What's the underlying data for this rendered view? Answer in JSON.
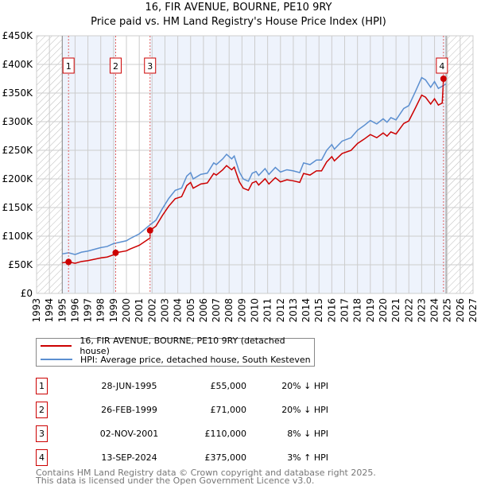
{
  "chart_data": {
    "type": "line",
    "title": "16, FIR AVENUE, BOURNE, PE10 9RY",
    "subtitle": "Price paid vs. HM Land Registry's House Price Index (HPI)",
    "xlim": [
      1993,
      2027
    ],
    "ylim": [
      0,
      450000
    ],
    "x_ticks": [
      "1993",
      "1994",
      "1995",
      "1996",
      "1997",
      "1998",
      "1999",
      "2000",
      "2001",
      "2002",
      "2003",
      "2004",
      "2005",
      "2006",
      "2007",
      "2008",
      "2009",
      "2010",
      "2011",
      "2012",
      "2013",
      "2014",
      "2015",
      "2016",
      "2017",
      "2018",
      "2019",
      "2020",
      "2021",
      "2022",
      "2023",
      "2024",
      "2025",
      "2026",
      "2027"
    ],
    "y_ticks": [
      {
        "v": 0,
        "label": "£0"
      },
      {
        "v": 50000,
        "label": "£50K"
      },
      {
        "v": 100000,
        "label": "£100K"
      },
      {
        "v": 150000,
        "label": "£150K"
      },
      {
        "v": 200000,
        "label": "£200K"
      },
      {
        "v": 250000,
        "label": "£250K"
      },
      {
        "v": 300000,
        "label": "£300K"
      },
      {
        "v": 350000,
        "label": "£350K"
      },
      {
        "v": 400000,
        "label": "£400K"
      },
      {
        "v": 450000,
        "label": "£450K"
      }
    ],
    "data_range": [
      1995.0,
      2024.9
    ],
    "series": [
      {
        "name": "HPI: Average price, detached house, South Kesteven",
        "color": "#5b8fd0",
        "x": [
          1995.0,
          1995.5,
          1996,
          1996.5,
          1997,
          1998,
          1998.5,
          1999,
          2000,
          2000.3,
          2001,
          2001.8,
          2002.3,
          2002.8,
          2003.3,
          2003.8,
          2004.3,
          2004.7,
          2005,
          2005.2,
          2005.8,
          2006.3,
          2006.8,
          2007,
          2007.5,
          2007.8,
          2008.2,
          2008.4,
          2008.8,
          2009.1,
          2009.5,
          2009.8,
          2010.1,
          2010.3,
          2010.8,
          2011.1,
          2011.6,
          2012,
          2012.5,
          2013,
          2013.5,
          2013.8,
          2014.3,
          2014.8,
          2015.2,
          2015.6,
          2016,
          2016.2,
          2016.8,
          2017.5,
          2018,
          2018.5,
          2019,
          2019.5,
          2020,
          2020.3,
          2020.6,
          2021,
          2021.6,
          2022,
          2022.5,
          2023,
          2023.3,
          2023.7,
          2024,
          2024.3,
          2024.6,
          2024.9
        ],
        "y": [
          69000,
          71000,
          68000,
          72000,
          74000,
          80000,
          82000,
          87000,
          92000,
          96000,
          104000,
          119000,
          128000,
          148000,
          166000,
          180000,
          184000,
          205000,
          211000,
          200000,
          208000,
          210000,
          228000,
          225000,
          235000,
          243000,
          235000,
          240000,
          212000,
          200000,
          196000,
          210000,
          213000,
          206000,
          218000,
          208000,
          220000,
          212000,
          216000,
          214000,
          211000,
          228000,
          225000,
          233000,
          233000,
          250000,
          260000,
          252000,
          266000,
          272000,
          285000,
          293000,
          302000,
          296000,
          305000,
          299000,
          307000,
          303000,
          323000,
          328000,
          352000,
          377000,
          373000,
          360000,
          370000,
          358000,
          362000,
          366000
        ]
      },
      {
        "name": "16, FIR AVENUE, BOURNE, PE10 9RY (detached house)",
        "color": "#cc0000"
      }
    ],
    "sales": [
      {
        "n": "1",
        "date": "28-JUN-1995",
        "x": 1995.49,
        "price": 55000,
        "price_label": "£55,000",
        "hpi": "20% ↓ HPI"
      },
      {
        "n": "2",
        "date": "26-FEB-1999",
        "x": 1999.16,
        "price": 71000,
        "price_label": "£71,000",
        "hpi": "20% ↓ HPI"
      },
      {
        "n": "3",
        "date": "02-NOV-2001",
        "x": 2001.84,
        "price": 110000,
        "price_label": "£110,000",
        "hpi": "8% ↓ HPI"
      },
      {
        "n": "4",
        "date": "13-SEP-2024",
        "x": 2024.7,
        "price": 375000,
        "price_label": "£375,000",
        "hpi": "3% ↑ HPI"
      }
    ]
  },
  "legend": {
    "property": "16, FIR AVENUE, BOURNE, PE10 9RY (detached house)",
    "hpi": "HPI: Average price, detached house, South Kesteven"
  },
  "footer": {
    "line1": "Contains HM Land Registry data © Crown copyright and database right 2025.",
    "line2": "This data is licensed under the Open Government Licence v3.0."
  }
}
